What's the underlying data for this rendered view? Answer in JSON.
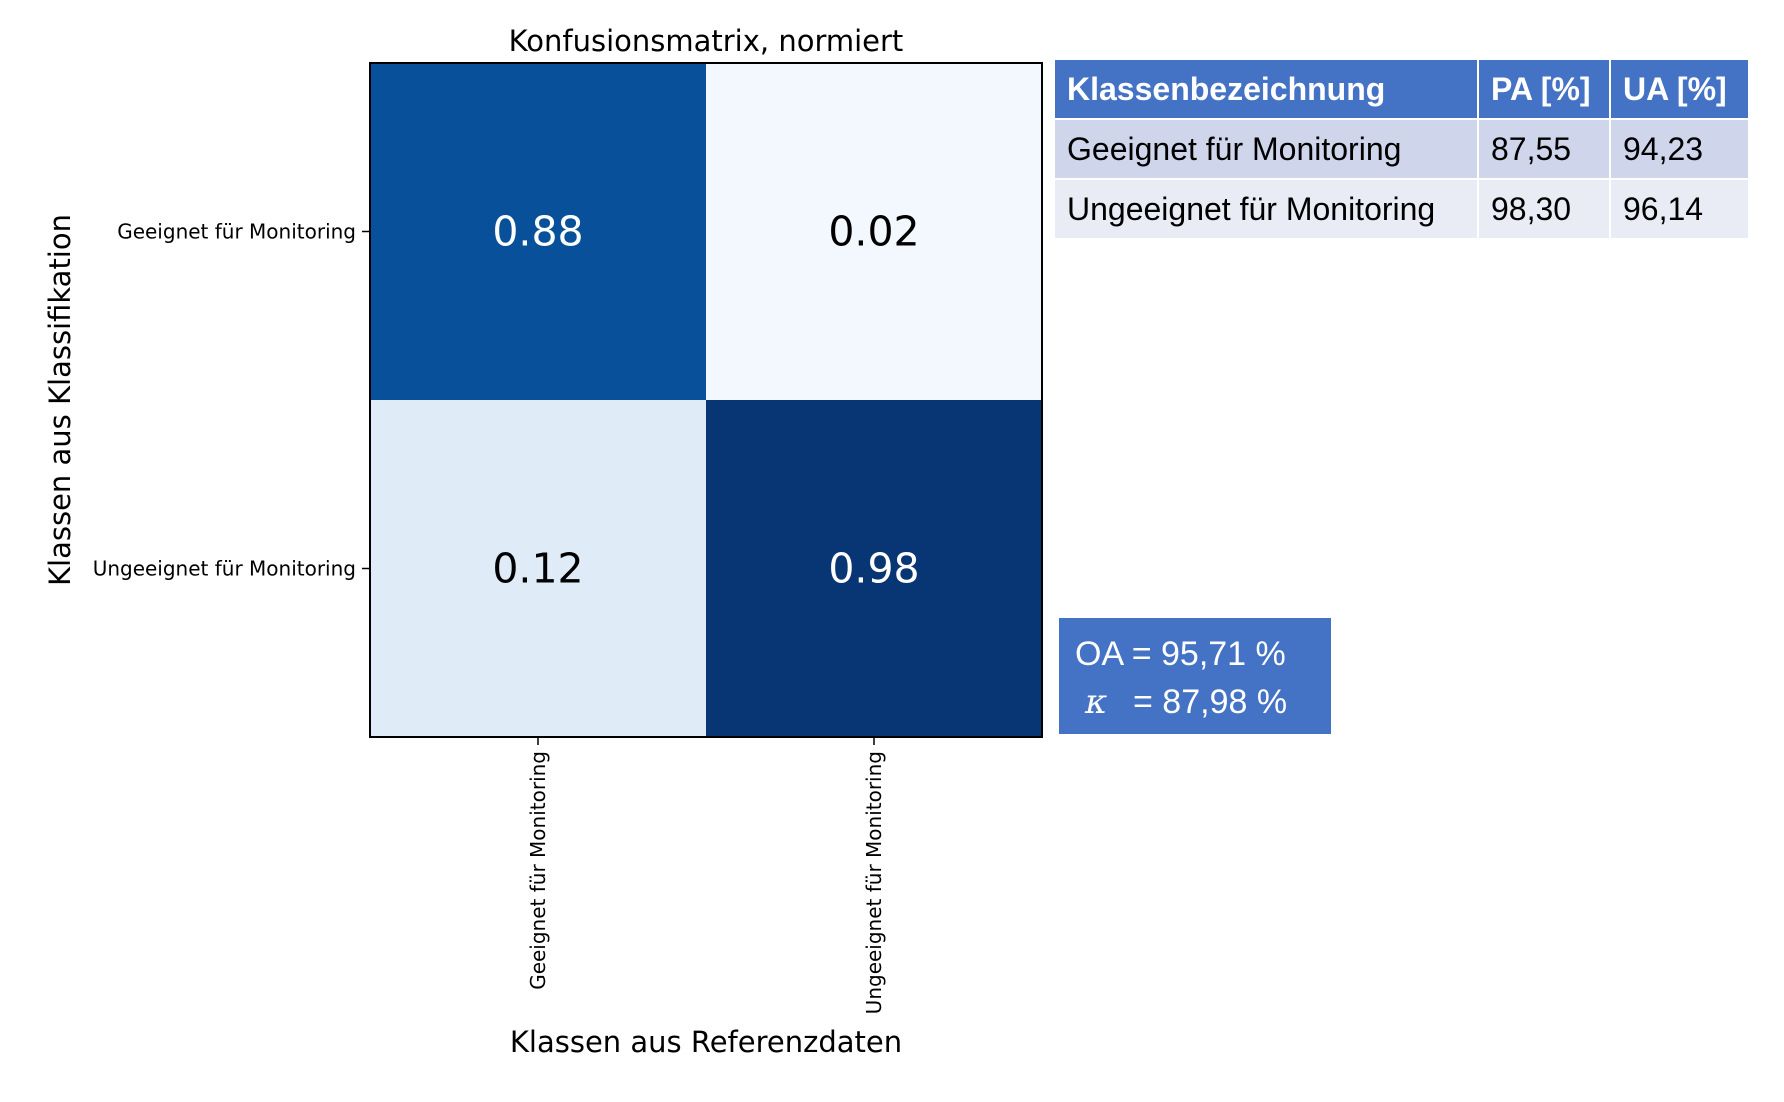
{
  "chart_data": {
    "type": "heatmap",
    "title": "Konfusionsmatrix, normiert",
    "xlabel": "Klassen aus Referenzdaten",
    "ylabel": "Klassen aus Klassifikation",
    "x_categories": [
      "Geeignet für Monitoring",
      "Ungeeignet für Monitoring"
    ],
    "y_categories": [
      "Geeignet für Monitoring",
      "Ungeeignet für Monitoring"
    ],
    "values": [
      [
        0.88,
        0.02
      ],
      [
        0.12,
        0.98
      ]
    ],
    "value_labels": [
      [
        "0.88",
        "0.02"
      ],
      [
        "0.12",
        "0.98"
      ]
    ],
    "colormap": "Blues",
    "vmin": 0.0,
    "vmax": 1.0
  },
  "metrics_table": {
    "headers": [
      "Klassenbezeichnung",
      "PA [%]",
      "UA [%]"
    ],
    "rows": [
      [
        "Geeignet für Monitoring",
        "87,55",
        "94,23"
      ],
      [
        "Ungeeignet für Monitoring",
        "98,30",
        "96,14"
      ]
    ],
    "header_color": "#4472c4"
  },
  "summary": {
    "oa_label": "OA",
    "oa_text": "= 95,71 %",
    "kappa_symbol": "κ",
    "kappa_text": "= 87,98 %",
    "box_color": "#4472c4"
  }
}
